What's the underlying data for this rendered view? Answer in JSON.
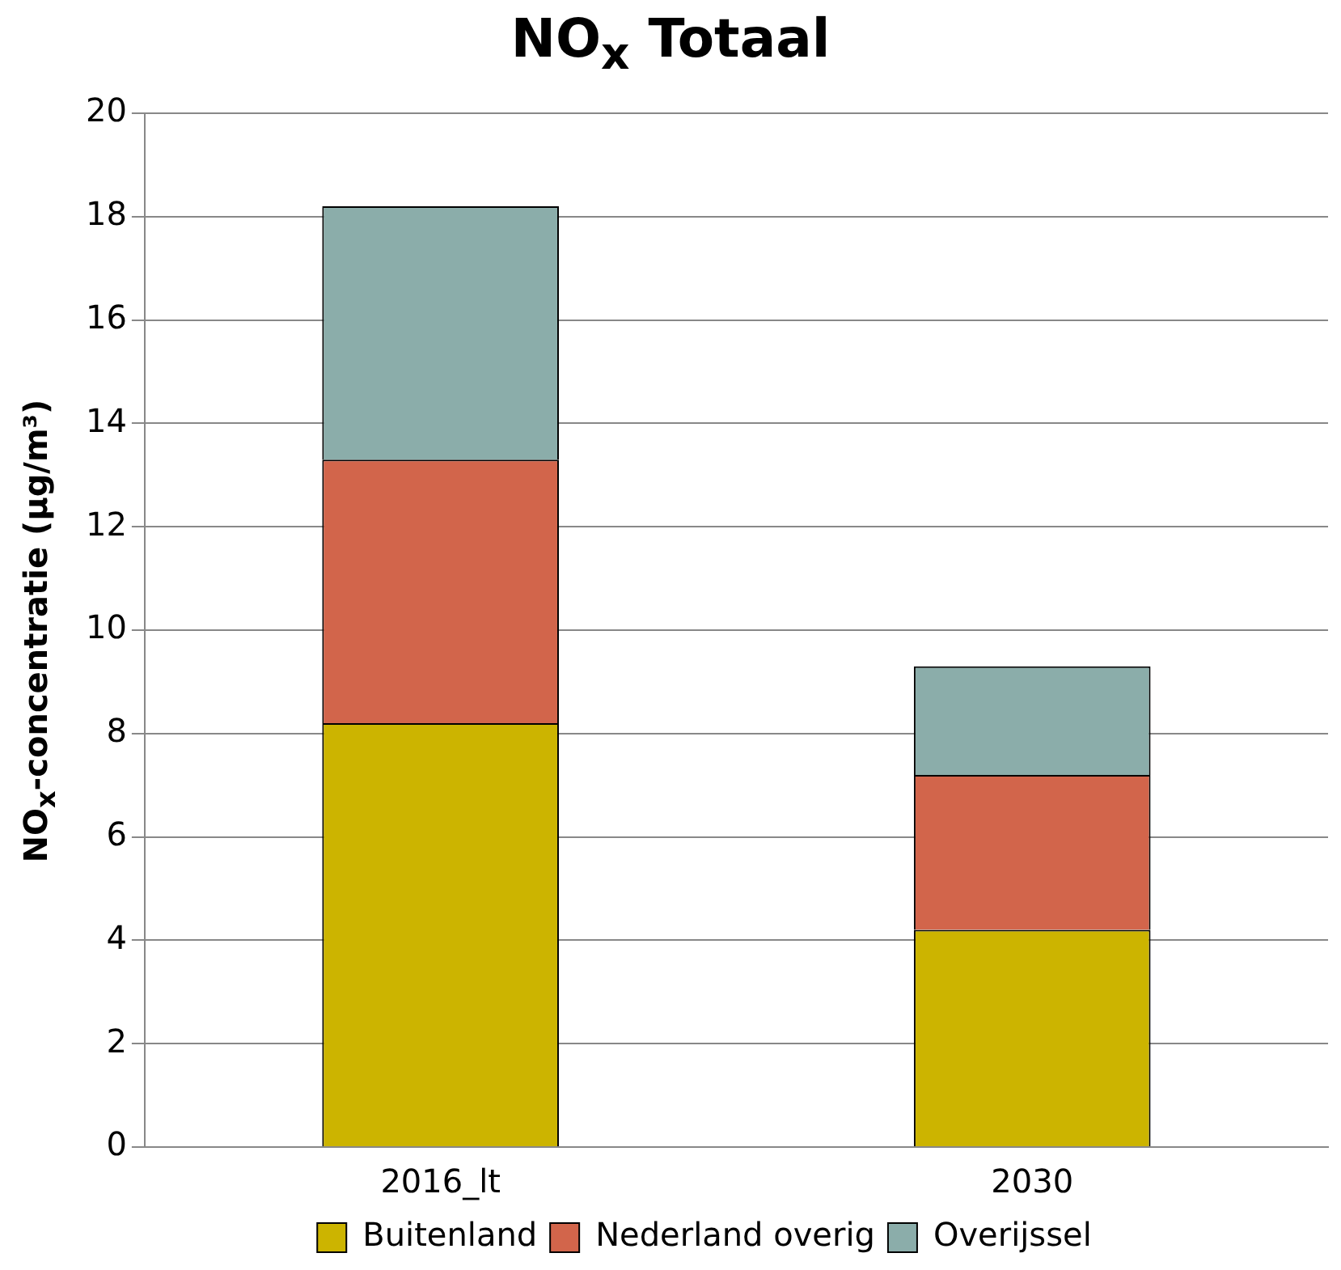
{
  "chart_data": {
    "type": "bar",
    "title": "NO$_{x}$ Totaal",
    "ylabel": "NO$_{x}$-concentratie (µg/m³)",
    "categories": [
      "2016_lt",
      "2030"
    ],
    "stacked": true,
    "series": [
      {
        "name": "Buitenland",
        "color": "#ccb400",
        "values": [
          8.2,
          4.2
        ]
      },
      {
        "name": "Nederland overig",
        "color": "#d2654b",
        "values": [
          5.1,
          3.0
        ]
      },
      {
        "name": "Overijssel",
        "color": "#8badaa",
        "values": [
          4.9,
          2.1
        ]
      }
    ],
    "ylim": [
      0,
      20
    ],
    "yticks": [
      0,
      2,
      4,
      6,
      8,
      10,
      12,
      14,
      16,
      18,
      20
    ],
    "grid": "y",
    "legend": "bottom"
  }
}
